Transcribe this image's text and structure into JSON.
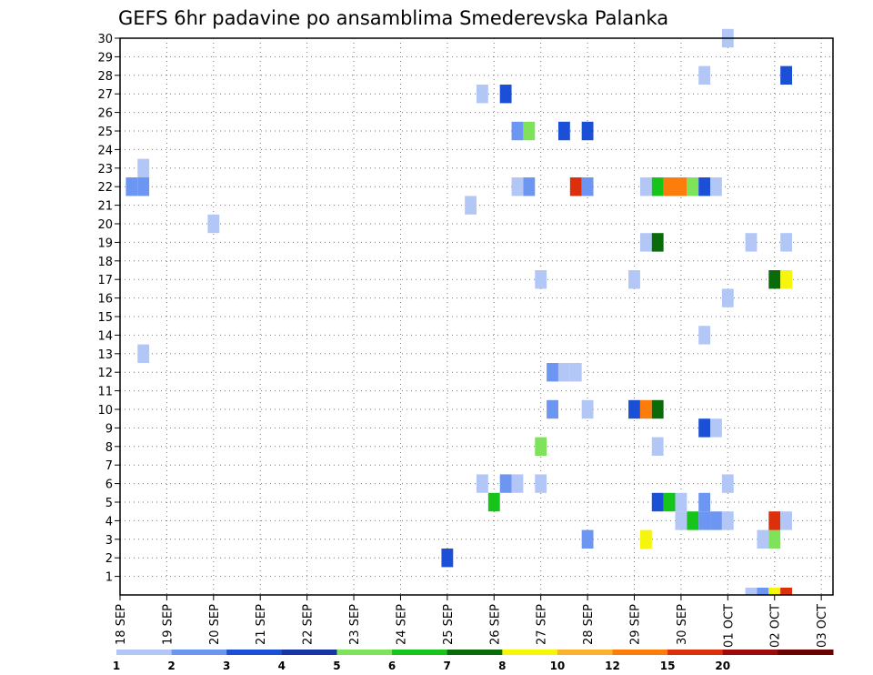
{
  "chart_data": {
    "type": "heatmap",
    "title": "GEFS 6hr padavine po ansamblima Smederevska Palanka",
    "y_ticks": [
      "1",
      "2",
      "3",
      "4",
      "5",
      "6",
      "7",
      "8",
      "9",
      "10",
      "11",
      "12",
      "13",
      "14",
      "15",
      "16",
      "17",
      "18",
      "19",
      "20",
      "21",
      "22",
      "23",
      "24",
      "25",
      "26",
      "27",
      "28",
      "29",
      "30"
    ],
    "x_ticks": [
      "18 SEP",
      "19 SEP",
      "20 SEP",
      "21 SEP",
      "22 SEP",
      "23 SEP",
      "24 SEP",
      "25 SEP",
      "26 SEP",
      "27 SEP",
      "28 SEP",
      "29 SEP",
      "30 SEP",
      "01 OCT",
      "02 OCT",
      "03 OCT"
    ],
    "x_unit": "6-hour steps after 18 SEP 00z",
    "xlim": [
      0,
      61
    ],
    "ylim": [
      0,
      30
    ],
    "grid": true,
    "legend": {
      "placement": "bottom",
      "labels": [
        "1",
        "2",
        "3",
        "4",
        "5",
        "6",
        "7",
        "8",
        "10",
        "12",
        "15",
        "20"
      ],
      "colors": [
        "#b3c7f7",
        "#6d96f2",
        "#1b4fd6",
        "#1535a8",
        "#7ee35b",
        "#16c41a",
        "#0a6b0a",
        "#f5f50d",
        "#fcb231",
        "#fc7d0b",
        "#dc2f0b",
        "#9c0a0a",
        "#6b0000"
      ]
    },
    "cells": [
      {
        "x": 1,
        "y": 22,
        "color": "#6d96f2"
      },
      {
        "x": 2,
        "y": 22,
        "color": "#6d96f2"
      },
      {
        "x": 2,
        "y": 23,
        "color": "#b3c7f7"
      },
      {
        "x": 2,
        "y": 13,
        "color": "#b3c7f7"
      },
      {
        "x": 8,
        "y": 20,
        "color": "#b3c7f7"
      },
      {
        "x": 28,
        "y": 2,
        "color": "#1b4fd6"
      },
      {
        "x": 31,
        "y": 27,
        "color": "#b3c7f7"
      },
      {
        "x": 33,
        "y": 27,
        "color": "#1b4fd6"
      },
      {
        "x": 30,
        "y": 21,
        "color": "#b3c7f7"
      },
      {
        "x": 31,
        "y": 6,
        "color": "#b3c7f7"
      },
      {
        "x": 33,
        "y": 6,
        "color": "#6d96f2"
      },
      {
        "x": 34,
        "y": 6,
        "color": "#b3c7f7"
      },
      {
        "x": 32,
        "y": 5,
        "color": "#16c41a"
      },
      {
        "x": 34,
        "y": 25,
        "color": "#6d96f2"
      },
      {
        "x": 35,
        "y": 25,
        "color": "#7ee35b"
      },
      {
        "x": 34,
        "y": 22,
        "color": "#b3c7f7"
      },
      {
        "x": 35,
        "y": 22,
        "color": "#6d96f2"
      },
      {
        "x": 36,
        "y": 17,
        "color": "#b3c7f7"
      },
      {
        "x": 36,
        "y": 8,
        "color": "#7ee35b"
      },
      {
        "x": 36,
        "y": 6,
        "color": "#b3c7f7"
      },
      {
        "x": 37,
        "y": 12,
        "color": "#6d96f2"
      },
      {
        "x": 38,
        "y": 12,
        "color": "#b3c7f7"
      },
      {
        "x": 39,
        "y": 12,
        "color": "#b3c7f7"
      },
      {
        "x": 37,
        "y": 10,
        "color": "#6d96f2"
      },
      {
        "x": 38,
        "y": 25,
        "color": "#1b4fd6"
      },
      {
        "x": 39,
        "y": 22,
        "color": "#dc2f0b"
      },
      {
        "x": 40,
        "y": 22,
        "color": "#6d96f2"
      },
      {
        "x": 40,
        "y": 25,
        "color": "#1b4fd6"
      },
      {
        "x": 40,
        "y": 10,
        "color": "#b3c7f7"
      },
      {
        "x": 40,
        "y": 3,
        "color": "#6d96f2"
      },
      {
        "x": 44,
        "y": 10,
        "color": "#1b4fd6"
      },
      {
        "x": 45,
        "y": 10,
        "color": "#fc7d0b"
      },
      {
        "x": 46,
        "y": 10,
        "color": "#0a6b0a"
      },
      {
        "x": 44,
        "y": 17,
        "color": "#b3c7f7"
      },
      {
        "x": 45,
        "y": 22,
        "color": "#b3c7f7"
      },
      {
        "x": 46,
        "y": 22,
        "color": "#16c41a"
      },
      {
        "x": 47,
        "y": 22,
        "color": "#fc7d0b"
      },
      {
        "x": 48,
        "y": 22,
        "color": "#fc7d0b"
      },
      {
        "x": 49,
        "y": 22,
        "color": "#7ee35b"
      },
      {
        "x": 50,
        "y": 22,
        "color": "#1b4fd6"
      },
      {
        "x": 51,
        "y": 22,
        "color": "#b3c7f7"
      },
      {
        "x": 45,
        "y": 19,
        "color": "#b3c7f7"
      },
      {
        "x": 46,
        "y": 19,
        "color": "#0a6b0a"
      },
      {
        "x": 45,
        "y": 3,
        "color": "#f5f50d"
      },
      {
        "x": 46,
        "y": 8,
        "color": "#b3c7f7"
      },
      {
        "x": 46,
        "y": 5,
        "color": "#1b4fd6"
      },
      {
        "x": 47,
        "y": 5,
        "color": "#16c41a"
      },
      {
        "x": 48,
        "y": 5,
        "color": "#b3c7f7"
      },
      {
        "x": 48,
        "y": 4,
        "color": "#b3c7f7"
      },
      {
        "x": 49,
        "y": 4,
        "color": "#16c41a"
      },
      {
        "x": 50,
        "y": 4,
        "color": "#6d96f2"
      },
      {
        "x": 51,
        "y": 4,
        "color": "#6d96f2"
      },
      {
        "x": 52,
        "y": 4,
        "color": "#b3c7f7"
      },
      {
        "x": 50,
        "y": 5,
        "color": "#6d96f2"
      },
      {
        "x": 50,
        "y": 9,
        "color": "#1b4fd6"
      },
      {
        "x": 51,
        "y": 9,
        "color": "#b3c7f7"
      },
      {
        "x": 50,
        "y": 14,
        "color": "#b3c7f7"
      },
      {
        "x": 50,
        "y": 28,
        "color": "#b3c7f7"
      },
      {
        "x": 52,
        "y": 30,
        "color": "#b3c7f7"
      },
      {
        "x": 52,
        "y": 16,
        "color": "#b3c7f7"
      },
      {
        "x": 52,
        "y": 6,
        "color": "#b3c7f7"
      },
      {
        "x": 54,
        "y": 19,
        "color": "#b3c7f7"
      },
      {
        "x": 55,
        "y": 3,
        "color": "#b3c7f7"
      },
      {
        "x": 56,
        "y": 3,
        "color": "#7ee35b"
      },
      {
        "x": 56,
        "y": 4,
        "color": "#dc2f0b"
      },
      {
        "x": 57,
        "y": 4,
        "color": "#b3c7f7"
      },
      {
        "x": 56,
        "y": 17,
        "color": "#0a6b0a"
      },
      {
        "x": 57,
        "y": 17,
        "color": "#f5f50d"
      },
      {
        "x": 57,
        "y": 19,
        "color": "#b3c7f7"
      },
      {
        "x": 57,
        "y": 28,
        "color": "#1b4fd6"
      },
      {
        "x": 54,
        "y": 0,
        "color": "#b3c7f7"
      },
      {
        "x": 55,
        "y": 0,
        "color": "#6d96f2"
      },
      {
        "x": 56,
        "y": 0,
        "color": "#f5f50d"
      },
      {
        "x": 57,
        "y": 0,
        "color": "#dc2f0b"
      }
    ]
  }
}
